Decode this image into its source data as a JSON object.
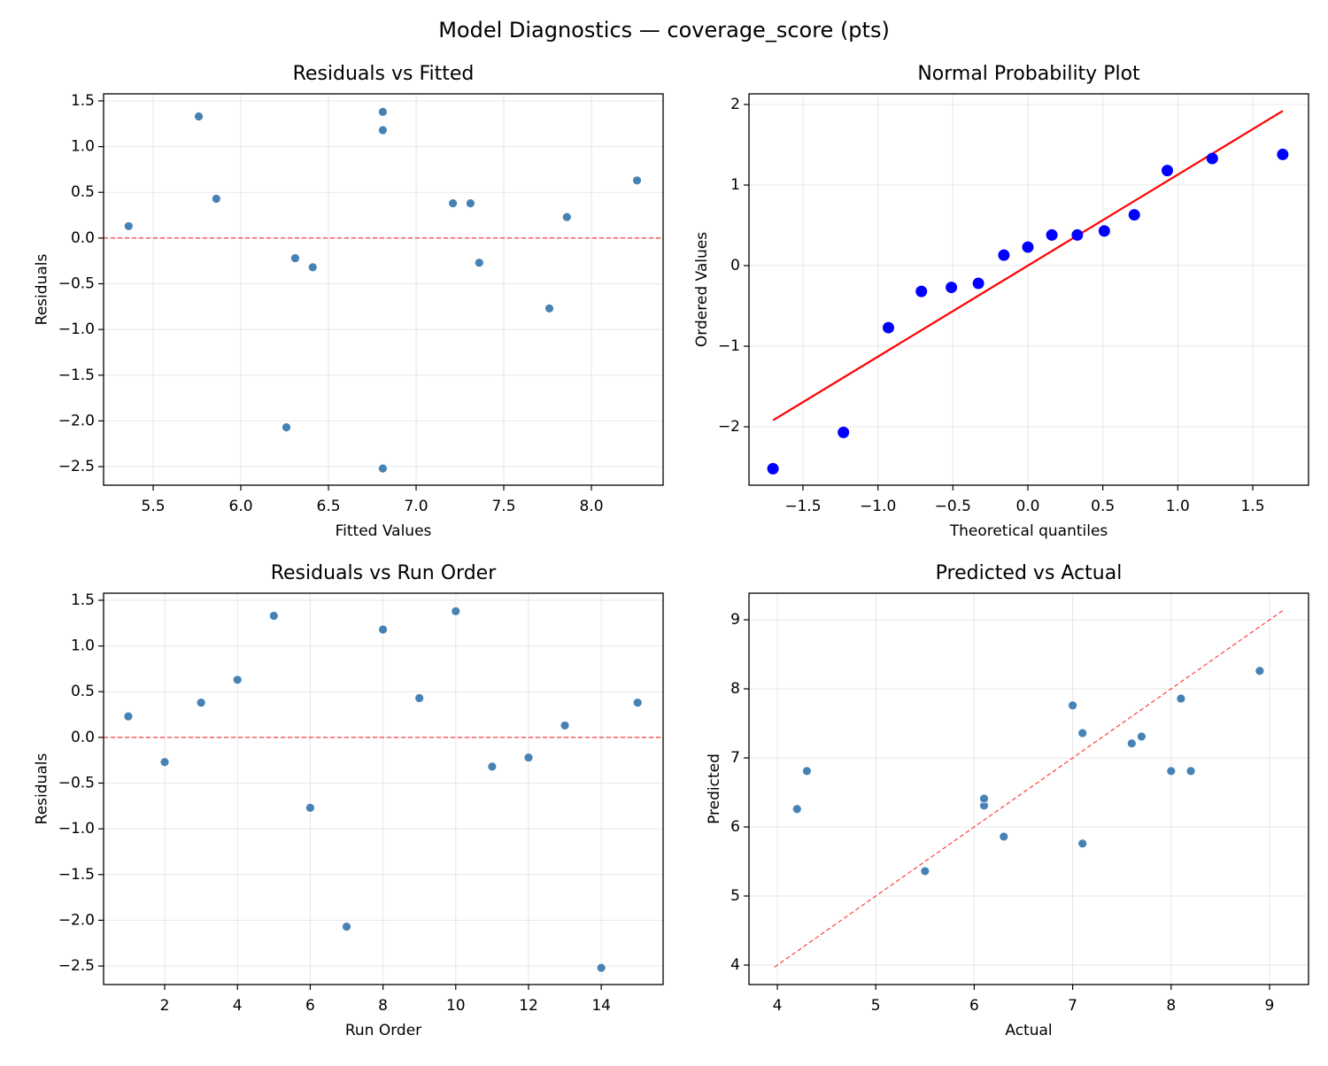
{
  "title": "Model Diagnostics — coverage_score (pts)",
  "chart_data": [
    {
      "type": "scatter",
      "title": "Residuals vs Fitted",
      "xlabel": "Fitted Values",
      "ylabel": "Residuals",
      "x": [
        5.36,
        5.76,
        5.86,
        6.26,
        6.31,
        6.41,
        6.81,
        6.81,
        6.81,
        7.21,
        7.31,
        7.36,
        7.76,
        7.86,
        8.26
      ],
      "values": [
        0.13,
        1.33,
        0.43,
        -2.07,
        -0.22,
        -0.32,
        1.38,
        1.18,
        -2.52,
        0.38,
        0.38,
        -0.27,
        -0.77,
        0.23,
        0.63
      ],
      "color": "#4682b4",
      "grid": true,
      "xlim": [
        5.217,
        8.409
      ],
      "ylim": [
        -2.703,
        1.577
      ],
      "xticks": [
        5.5,
        {
          "value": 6,
          "label": "6.0"
        },
        6.5,
        {
          "value": 7,
          "label": "7.0"
        },
        7.5,
        {
          "value": 8,
          "label": "8.0"
        }
      ],
      "yticks": [
        {
          "value": -2.5,
          "label": "−2.5"
        },
        {
          "value": -2,
          "label": "−2.0"
        },
        {
          "value": -1.5,
          "label": "−1.5"
        },
        {
          "value": -1,
          "label": "−1.0"
        },
        {
          "value": -0.5,
          "label": "−0.5"
        },
        {
          "value": 0,
          "label": "0.0"
        },
        0.5,
        {
          "value": 1,
          "label": "1.0"
        },
        1.5
      ],
      "hline": {
        "y": 0,
        "color": "#ff0000"
      }
    },
    {
      "type": "scatter",
      "title": "Normal Probability Plot",
      "xlabel": "Theoretical quantiles",
      "ylabel": "Ordered Values",
      "x": [
        -1.7,
        -1.23,
        -0.93,
        -0.71,
        -0.51,
        -0.33,
        -0.16,
        0,
        0.16,
        0.33,
        0.51,
        0.71,
        0.93,
        1.23,
        1.7
      ],
      "values": [
        -2.52,
        -2.07,
        -0.77,
        -0.32,
        -0.27,
        -0.22,
        0.13,
        0.23,
        0.38,
        0.38,
        0.43,
        0.63,
        1.18,
        1.33,
        1.38
      ],
      "color": "#0000ff",
      "grid": true,
      "marker_size": "large",
      "xlim": [
        -1.86,
        1.872
      ],
      "ylim": [
        -2.725,
        2.132
      ],
      "xticks": [
        {
          "value": -1.5,
          "label": "−1.5"
        },
        {
          "value": -1,
          "label": "−1.0"
        },
        {
          "value": -0.5,
          "label": "−0.5"
        },
        {
          "value": 0,
          "label": "0.0"
        },
        0.5,
        {
          "value": 1,
          "label": "1.0"
        },
        1.5
      ],
      "yticks": [
        {
          "value": -2,
          "label": "−2"
        },
        {
          "value": -1,
          "label": "−1"
        },
        0,
        1,
        2
      ],
      "fit_line": {
        "x": [
          -1.7,
          1.7
        ],
        "values": [
          -1.92,
          1.92
        ],
        "color": "#ff0000"
      }
    },
    {
      "type": "scatter",
      "title": "Residuals vs Run Order",
      "xlabel": "Run Order",
      "ylabel": "Residuals",
      "x": [
        1,
        2,
        3,
        4,
        5,
        6,
        7,
        8,
        9,
        10,
        11,
        12,
        13,
        14,
        15
      ],
      "values": [
        0.23,
        -0.27,
        0.38,
        0.63,
        1.33,
        -0.77,
        -2.07,
        1.18,
        0.43,
        1.38,
        -0.32,
        -0.22,
        0.13,
        -2.52,
        0.38
      ],
      "color": "#4682b4",
      "grid": true,
      "xlim": [
        0.32,
        15.7
      ],
      "ylim": [
        -2.703,
        1.577
      ],
      "xticks": [
        2,
        4,
        6,
        8,
        10,
        12,
        14
      ],
      "yticks": [
        {
          "value": -2.5,
          "label": "−2.5"
        },
        {
          "value": -2,
          "label": "−2.0"
        },
        {
          "value": -1.5,
          "label": "−1.5"
        },
        {
          "value": -1,
          "label": "−1.0"
        },
        {
          "value": -0.5,
          "label": "−0.5"
        },
        {
          "value": 0,
          "label": "0.0"
        },
        0.5,
        {
          "value": 1,
          "label": "1.0"
        },
        1.5
      ],
      "hline": {
        "y": 0,
        "color": "#ff0000"
      }
    },
    {
      "type": "scatter",
      "title": "Predicted vs Actual",
      "xlabel": "Actual",
      "ylabel": "Predicted",
      "x": [
        5.5,
        7.1,
        6.3,
        4.2,
        6.1,
        6.1,
        8.2,
        8.0,
        4.3,
        7.6,
        7.7,
        7.1,
        7.0,
        8.1,
        8.9
      ],
      "values": [
        5.36,
        5.76,
        5.86,
        6.26,
        6.31,
        6.41,
        6.81,
        6.81,
        6.81,
        7.21,
        7.31,
        7.36,
        7.76,
        7.86,
        8.26
      ],
      "color": "#4682b4",
      "grid": true,
      "xlim": [
        3.712,
        9.396
      ],
      "ylim": [
        3.718,
        9.385
      ],
      "xticks": [
        4,
        5,
        6,
        7,
        8,
        9
      ],
      "yticks": [
        4,
        5,
        6,
        7,
        8,
        9
      ],
      "diagonal": {
        "x": [
          3.97,
          9.14
        ],
        "values": [
          3.97,
          9.14
        ],
        "color": "#ff0000"
      }
    }
  ]
}
